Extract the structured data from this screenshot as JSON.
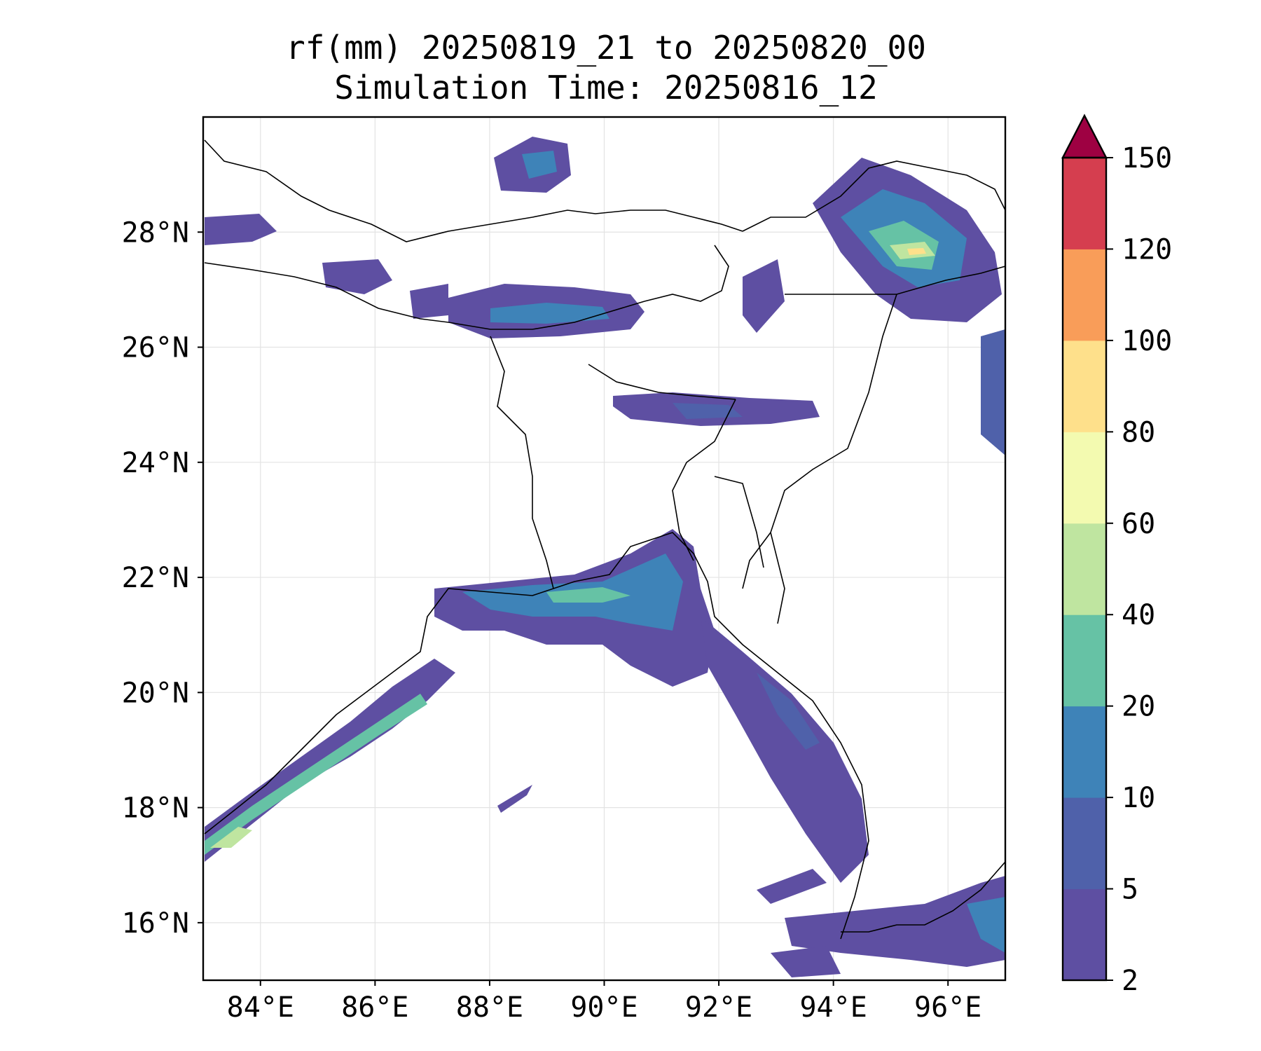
{
  "title": {
    "line1": "rf(mm) 20250819_21 to 20250820_00",
    "line2": "Simulation Time: 20250816_12"
  },
  "map": {
    "lat_range": [
      15,
      30
    ],
    "lon_range": [
      83,
      97
    ],
    "lat_ticks": [
      "16°N",
      "18°N",
      "20°N",
      "22°N",
      "24°N",
      "26°N",
      "28°N"
    ],
    "lon_ticks": [
      "84°E",
      "86°E",
      "88°E",
      "90°E",
      "92°E",
      "94°E",
      "96°E"
    ],
    "gridlines": true
  },
  "colorbar": {
    "levels": [
      "2",
      "5",
      "10",
      "20",
      "40",
      "60",
      "80",
      "100",
      "120",
      "150"
    ],
    "colors": [
      "#5e4fa2",
      "#4f61aa",
      "#3e83b8",
      "#66c2a5",
      "#bfe5a0",
      "#f3fab0",
      "#fee08b",
      "#f99d59",
      "#d53e4f",
      "#9e0142"
    ],
    "extend": "max"
  }
}
